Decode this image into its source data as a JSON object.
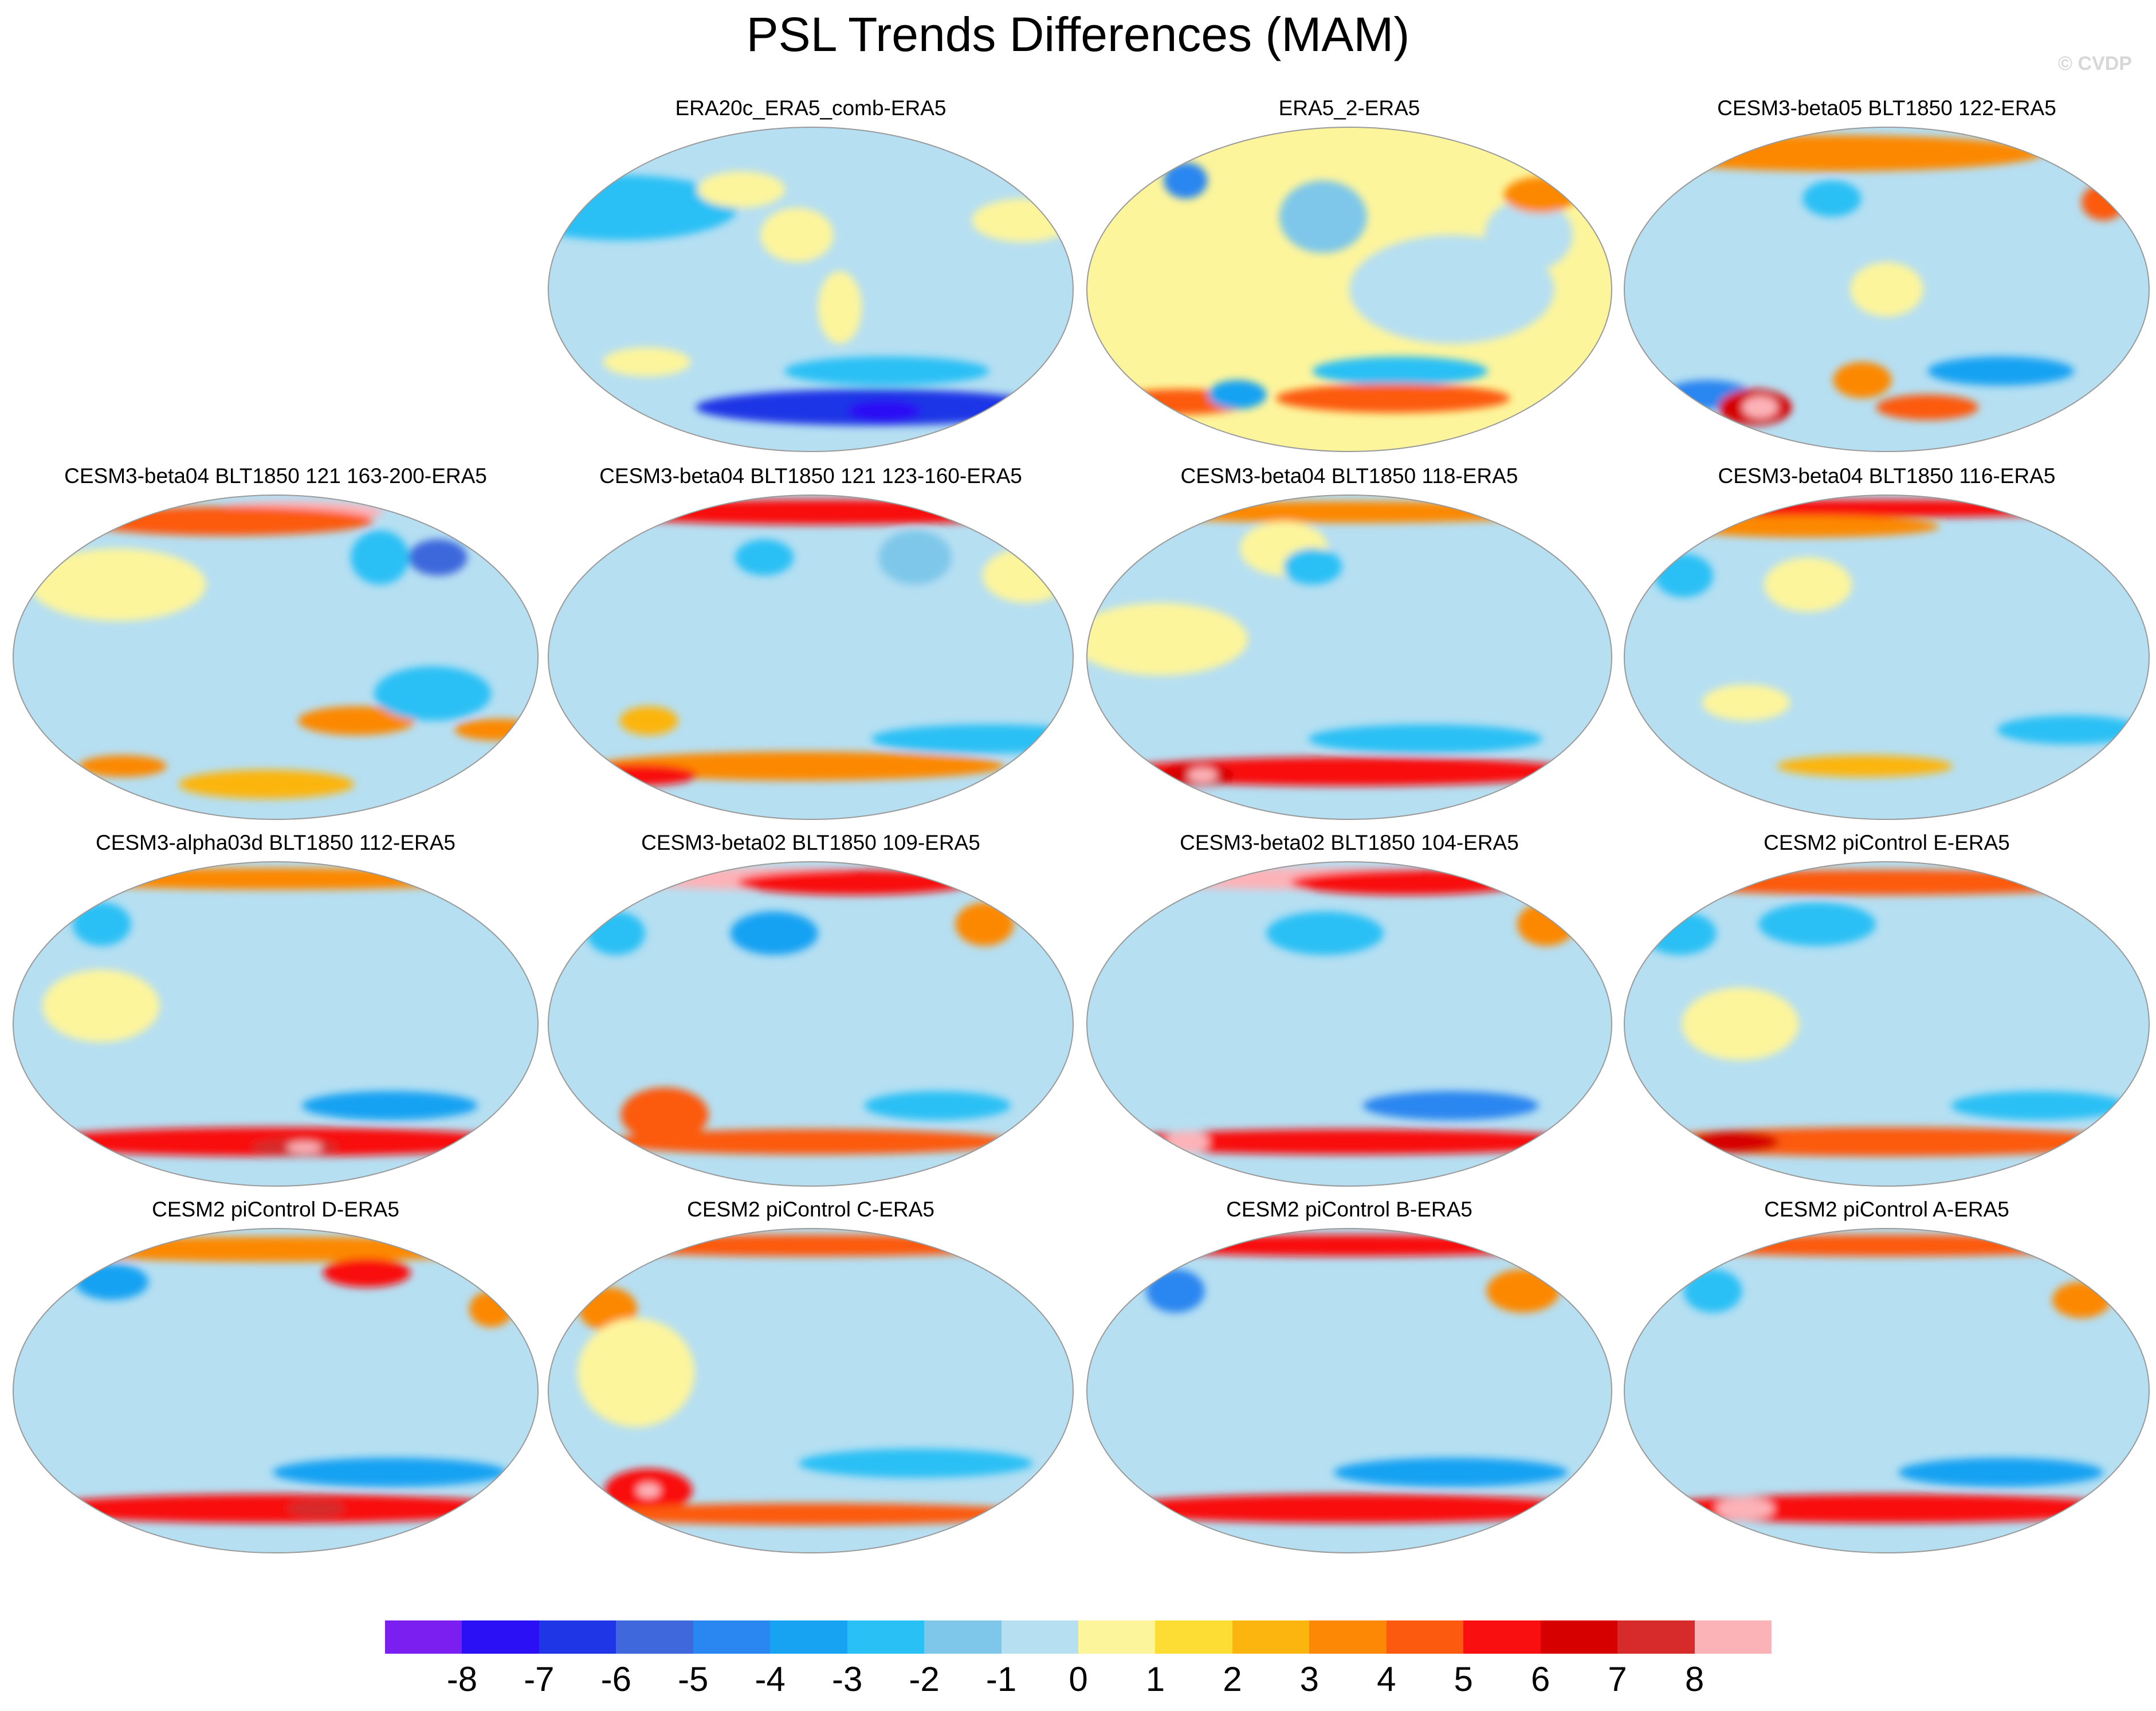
{
  "title": "PSL Trends Differences (MAM)",
  "watermark": "© CVDP",
  "palette": {
    "-9": "#7b1ff0",
    "-8": "#2b0ff5",
    "-7": "#1e36e6",
    "-6": "#3e68dc",
    "-5": "#2a86f0",
    "-4": "#17a2f2",
    "-3": "#29c0f5",
    "-2": "#7ec7ea",
    "-1": "#b6dff2",
    "0": "#fdf59c",
    "1": "#fddc34",
    "2": "#fcb50f",
    "3": "#fc8805",
    "4": "#fc5a0e",
    "5": "#f90f0f",
    "6": "#d60000",
    "7": "#d72b2b",
    "8": "#fcb3b8"
  },
  "colorbar": {
    "labels": [
      "-8",
      "-7",
      "-6",
      "-5",
      "-4",
      "-3",
      "-2",
      "-1",
      "0",
      "1",
      "2",
      "3",
      "4",
      "5",
      "6",
      "7",
      "8"
    ],
    "colors": [
      "#7b1ff0",
      "#2b0ff5",
      "#1e36e6",
      "#3e68dc",
      "#2a86f0",
      "#17a2f2",
      "#29c0f5",
      "#7ec7ea",
      "#b6dff2",
      "#fdf59c",
      "#fddc34",
      "#fcb50f",
      "#fc8805",
      "#fc5a0e",
      "#f90f0f",
      "#d60000",
      "#d72b2b",
      "#fcb3b8"
    ]
  },
  "panels": [
    {
      "title": "ERA20c_ERA5_comb-ERA5",
      "bg": -1,
      "blobs": [
        {
          "lon": -150,
          "lat": 45,
          "rx": 80,
          "ry": 18,
          "v": -3
        },
        {
          "lon": 160,
          "lat": 38,
          "rx": 35,
          "ry": 12,
          "v": 0
        },
        {
          "lon": -10,
          "lat": 30,
          "rx": 25,
          "ry": 15,
          "v": 0
        },
        {
          "lon": -60,
          "lat": 55,
          "rx": 30,
          "ry": 10,
          "v": 0
        },
        {
          "lon": 60,
          "lat": -45,
          "rx": 70,
          "ry": 8,
          "v": -3
        },
        {
          "lon": 60,
          "lat": -65,
          "rx": 120,
          "ry": 10,
          "v": -7
        },
        {
          "lon": 75,
          "lat": -67,
          "rx": 25,
          "ry": 6,
          "v": -8
        },
        {
          "lon": 20,
          "lat": -10,
          "rx": 15,
          "ry": 20,
          "v": 0
        },
        {
          "lon": -125,
          "lat": -40,
          "rx": 30,
          "ry": 8,
          "v": 0
        }
      ]
    },
    {
      "title": "ERA5_2-ERA5",
      "bg": 0,
      "blobs": [
        {
          "lon": 70,
          "lat": 0,
          "rx": 70,
          "ry": 30,
          "v": -1
        },
        {
          "lon": 130,
          "lat": 30,
          "rx": 30,
          "ry": 20,
          "v": -1
        },
        {
          "lon": 160,
          "lat": 52,
          "rx": 25,
          "ry": 10,
          "v": 3
        },
        {
          "lon": -150,
          "lat": 60,
          "rx": 15,
          "ry": 10,
          "v": -5
        },
        {
          "lon": -20,
          "lat": 40,
          "rx": 30,
          "ry": 20,
          "v": -2
        },
        {
          "lon": 40,
          "lat": -45,
          "rx": 60,
          "ry": 8,
          "v": -3
        },
        {
          "lon": 40,
          "lat": -60,
          "rx": 80,
          "ry": 8,
          "v": 4
        },
        {
          "lon": -160,
          "lat": -62,
          "rx": 50,
          "ry": 7,
          "v": 4
        },
        {
          "lon": -100,
          "lat": -58,
          "rx": 20,
          "ry": 8,
          "v": -4
        }
      ]
    },
    {
      "title": "CESM3-beta05 BLT1850 122-ERA5",
      "bg": -1,
      "blobs": [
        {
          "lon": -60,
          "lat": 75,
          "rx": 140,
          "ry": 10,
          "v": 3
        },
        {
          "lon": 175,
          "lat": 48,
          "rx": 15,
          "ry": 10,
          "v": 4
        },
        {
          "lon": -45,
          "lat": 50,
          "rx": 20,
          "ry": 10,
          "v": -3
        },
        {
          "lon": 90,
          "lat": -45,
          "rx": 50,
          "ry": 8,
          "v": -4
        },
        {
          "lon": -160,
          "lat": -58,
          "rx": 30,
          "ry": 8,
          "v": -5
        },
        {
          "lon": -130,
          "lat": -65,
          "rx": 25,
          "ry": 10,
          "v": 6
        },
        {
          "lon": -125,
          "lat": -65,
          "rx": 12,
          "ry": 6,
          "v": 8
        },
        {
          "lon": 40,
          "lat": -65,
          "rx": 35,
          "ry": 7,
          "v": 4
        },
        {
          "lon": -20,
          "lat": -50,
          "rx": 20,
          "ry": 10,
          "v": 3
        },
        {
          "lon": 0,
          "lat": 0,
          "rx": 25,
          "ry": 15,
          "v": 0
        }
      ]
    },
    {
      "title": "CESM3-beta04 BLT1850 121 163-200-ERA5",
      "bg": -1,
      "blobs": [
        {
          "lon": 30,
          "lat": 80,
          "rx": 60,
          "ry": 6,
          "v": 8
        },
        {
          "lon": -60,
          "lat": 75,
          "rx": 100,
          "ry": 8,
          "v": 4
        },
        {
          "lon": 140,
          "lat": 55,
          "rx": 20,
          "ry": 10,
          "v": -6
        },
        {
          "lon": 90,
          "lat": 55,
          "rx": 20,
          "ry": 15,
          "v": -3
        },
        {
          "lon": -120,
          "lat": 40,
          "rx": 60,
          "ry": 20,
          "v": 0
        },
        {
          "lon": 60,
          "lat": -35,
          "rx": 40,
          "ry": 8,
          "v": 3
        },
        {
          "lon": 170,
          "lat": -40,
          "rx": 30,
          "ry": 6,
          "v": 3
        },
        {
          "lon": 110,
          "lat": -20,
          "rx": 40,
          "ry": 15,
          "v": -3
        },
        {
          "lon": -140,
          "lat": -60,
          "rx": 30,
          "ry": 6,
          "v": 3
        },
        {
          "lon": -10,
          "lat": -70,
          "rx": 60,
          "ry": 8,
          "v": 2
        }
      ]
    },
    {
      "title": "CESM3-beta04 BLT1850 121 123-160-ERA5",
      "bg": -1,
      "blobs": [
        {
          "lon": 20,
          "lat": 80,
          "rx": 160,
          "ry": 7,
          "v": 5
        },
        {
          "lon": 170,
          "lat": 45,
          "rx": 30,
          "ry": 15,
          "v": 0
        },
        {
          "lon": -40,
          "lat": 55,
          "rx": 20,
          "ry": 10,
          "v": -3
        },
        {
          "lon": 140,
          "lat": -45,
          "rx": 80,
          "ry": 8,
          "v": -3
        },
        {
          "lon": -10,
          "lat": -60,
          "rx": 140,
          "ry": 8,
          "v": 3
        },
        {
          "lon": -170,
          "lat": -65,
          "rx": 40,
          "ry": 6,
          "v": 5
        },
        {
          "lon": -120,
          "lat": -35,
          "rx": 20,
          "ry": 8,
          "v": 2
        },
        {
          "lon": 90,
          "lat": 55,
          "rx": 25,
          "ry": 15,
          "v": -2
        }
      ]
    },
    {
      "title": "CESM3-beta04 BLT1850 118-ERA5",
      "bg": -1,
      "blobs": [
        {
          "lon": 0,
          "lat": 80,
          "rx": 150,
          "ry": 6,
          "v": 3
        },
        {
          "lon": -60,
          "lat": 60,
          "rx": 30,
          "ry": 15,
          "v": 0
        },
        {
          "lon": -30,
          "lat": 50,
          "rx": 20,
          "ry": 10,
          "v": -3
        },
        {
          "lon": -130,
          "lat": 10,
          "rx": 60,
          "ry": 20,
          "v": 0
        },
        {
          "lon": 60,
          "lat": -45,
          "rx": 80,
          "ry": 8,
          "v": -3
        },
        {
          "lon": 0,
          "lat": -63,
          "rx": 160,
          "ry": 8,
          "v": 5
        },
        {
          "lon": -150,
          "lat": -65,
          "rx": 25,
          "ry": 6,
          "v": 6
        },
        {
          "lon": -145,
          "lat": -65,
          "rx": 10,
          "ry": 4,
          "v": 8
        }
      ]
    },
    {
      "title": "CESM3-beta04 BLT1850 116-ERA5",
      "bg": -1,
      "blobs": [
        {
          "lon": 0,
          "lat": 82,
          "rx": 160,
          "ry": 5,
          "v": 5
        },
        {
          "lon": -90,
          "lat": 72,
          "rx": 90,
          "ry": 6,
          "v": 3
        },
        {
          "lon": -160,
          "lat": 45,
          "rx": 20,
          "ry": 12,
          "v": -3
        },
        {
          "lon": -60,
          "lat": 40,
          "rx": 30,
          "ry": 15,
          "v": 0
        },
        {
          "lon": 140,
          "lat": -40,
          "rx": 50,
          "ry": 8,
          "v": -3
        },
        {
          "lon": -100,
          "lat": -25,
          "rx": 30,
          "ry": 10,
          "v": 0
        },
        {
          "lon": -20,
          "lat": -60,
          "rx": 60,
          "ry": 6,
          "v": 2
        }
      ]
    },
    {
      "title": "CESM3-alpha03d BLT1850 112-ERA5",
      "bg": -1,
      "blobs": [
        {
          "lon": 0,
          "lat": 80,
          "rx": 160,
          "ry": 6,
          "v": 3
        },
        {
          "lon": -150,
          "lat": 55,
          "rx": 20,
          "ry": 12,
          "v": -3
        },
        {
          "lon": -120,
          "lat": 10,
          "rx": 40,
          "ry": 20,
          "v": 0
        },
        {
          "lon": 90,
          "lat": -45,
          "rx": 60,
          "ry": 8,
          "v": -4
        },
        {
          "lon": 0,
          "lat": -65,
          "rx": 170,
          "ry": 8,
          "v": 5
        },
        {
          "lon": 20,
          "lat": -68,
          "rx": 30,
          "ry": 5,
          "v": 7
        },
        {
          "lon": 30,
          "lat": -68,
          "rx": 12,
          "ry": 3,
          "v": 8
        }
      ]
    },
    {
      "title": "CESM3-beta02 BLT1850 109-ERA5",
      "bg": -1,
      "blobs": [
        {
          "lon": -60,
          "lat": 80,
          "rx": 110,
          "ry": 6,
          "v": 8
        },
        {
          "lon": 60,
          "lat": 78,
          "rx": 80,
          "ry": 7,
          "v": 5
        },
        {
          "lon": 150,
          "lat": 55,
          "rx": 20,
          "ry": 12,
          "v": 3
        },
        {
          "lon": -160,
          "lat": 50,
          "rx": 20,
          "ry": 12,
          "v": -3
        },
        {
          "lon": -30,
          "lat": 50,
          "rx": 30,
          "ry": 12,
          "v": -4
        },
        {
          "lon": 100,
          "lat": -45,
          "rx": 50,
          "ry": 8,
          "v": -3
        },
        {
          "lon": -120,
          "lat": -50,
          "rx": 30,
          "ry": 15,
          "v": 4
        },
        {
          "lon": 0,
          "lat": -65,
          "rx": 140,
          "ry": 7,
          "v": 4
        }
      ]
    },
    {
      "title": "CESM3-beta02 BLT1850 104-ERA5",
      "bg": -1,
      "blobs": [
        {
          "lon": -50,
          "lat": 80,
          "rx": 130,
          "ry": 6,
          "v": 8
        },
        {
          "lon": 80,
          "lat": 78,
          "rx": 80,
          "ry": 7,
          "v": 5
        },
        {
          "lon": 170,
          "lat": 55,
          "rx": 20,
          "ry": 12,
          "v": 3
        },
        {
          "lon": -20,
          "lat": 50,
          "rx": 40,
          "ry": 12,
          "v": -3
        },
        {
          "lon": 80,
          "lat": -45,
          "rx": 60,
          "ry": 8,
          "v": -5
        },
        {
          "lon": 0,
          "lat": -65,
          "rx": 170,
          "ry": 7,
          "v": 5
        },
        {
          "lon": -160,
          "lat": -65,
          "rx": 15,
          "ry": 6,
          "v": 8
        }
      ]
    },
    {
      "title": "CESM2 piControl E-ERA5",
      "bg": -1,
      "blobs": [
        {
          "lon": 0,
          "lat": 78,
          "rx": 160,
          "ry": 7,
          "v": 4
        },
        {
          "lon": -170,
          "lat": 50,
          "rx": 25,
          "ry": 12,
          "v": -3
        },
        {
          "lon": -60,
          "lat": 55,
          "rx": 40,
          "ry": 12,
          "v": -3
        },
        {
          "lon": -100,
          "lat": 0,
          "rx": 40,
          "ry": 20,
          "v": 0
        },
        {
          "lon": 120,
          "lat": -45,
          "rx": 60,
          "ry": 8,
          "v": -3
        },
        {
          "lon": 0,
          "lat": -65,
          "rx": 170,
          "ry": 8,
          "v": 4
        },
        {
          "lon": -150,
          "lat": -65,
          "rx": 30,
          "ry": 6,
          "v": 6
        }
      ]
    },
    {
      "title": "CESM2 piControl D-ERA5",
      "bg": -1,
      "blobs": [
        {
          "lon": 0,
          "lat": 78,
          "rx": 160,
          "ry": 7,
          "v": 3
        },
        {
          "lon": 90,
          "lat": 65,
          "rx": 30,
          "ry": 8,
          "v": 5
        },
        {
          "lon": -150,
          "lat": 60,
          "rx": 25,
          "ry": 10,
          "v": -4
        },
        {
          "lon": 170,
          "lat": 45,
          "rx": 15,
          "ry": 10,
          "v": 3
        },
        {
          "lon": 90,
          "lat": -45,
          "rx": 80,
          "ry": 8,
          "v": -4
        },
        {
          "lon": 0,
          "lat": -65,
          "rx": 170,
          "ry": 8,
          "v": 5
        },
        {
          "lon": 40,
          "lat": -65,
          "rx": 20,
          "ry": 5,
          "v": 7
        }
      ]
    },
    {
      "title": "CESM2 piControl C-ERA5",
      "bg": -1,
      "blobs": [
        {
          "lon": 0,
          "lat": 80,
          "rx": 160,
          "ry": 6,
          "v": 4
        },
        {
          "lon": -160,
          "lat": 45,
          "rx": 20,
          "ry": 12,
          "v": 3
        },
        {
          "lon": -120,
          "lat": 10,
          "rx": 40,
          "ry": 30,
          "v": 0
        },
        {
          "lon": 80,
          "lat": -40,
          "rx": 80,
          "ry": 8,
          "v": -3
        },
        {
          "lon": -140,
          "lat": -55,
          "rx": 30,
          "ry": 12,
          "v": 5
        },
        {
          "lon": -140,
          "lat": -55,
          "rx": 8,
          "ry": 4,
          "v": 8
        },
        {
          "lon": 0,
          "lat": -68,
          "rx": 160,
          "ry": 6,
          "v": 4
        }
      ]
    },
    {
      "title": "CESM2 piControl B-ERA5",
      "bg": -1,
      "blobs": [
        {
          "lon": 0,
          "lat": 80,
          "rx": 160,
          "ry": 6,
          "v": 5
        },
        {
          "lon": 150,
          "lat": 55,
          "rx": 25,
          "ry": 12,
          "v": 3
        },
        {
          "lon": -150,
          "lat": 55,
          "rx": 20,
          "ry": 12,
          "v": -5
        },
        {
          "lon": 80,
          "lat": -45,
          "rx": 80,
          "ry": 8,
          "v": -4
        },
        {
          "lon": 0,
          "lat": -65,
          "rx": 170,
          "ry": 8,
          "v": 5
        }
      ]
    },
    {
      "title": "CESM2 piControl A-ERA5",
      "bg": -1,
      "blobs": [
        {
          "lon": 0,
          "lat": 80,
          "rx": 160,
          "ry": 6,
          "v": 4
        },
        {
          "lon": 160,
          "lat": 50,
          "rx": 20,
          "ry": 10,
          "v": 3
        },
        {
          "lon": -150,
          "lat": 55,
          "rx": 20,
          "ry": 12,
          "v": -3
        },
        {
          "lon": 90,
          "lat": -45,
          "rx": 70,
          "ry": 8,
          "v": -4
        },
        {
          "lon": 0,
          "lat": -65,
          "rx": 170,
          "ry": 8,
          "v": 5
        },
        {
          "lon": -140,
          "lat": -65,
          "rx": 20,
          "ry": 6,
          "v": 8
        }
      ]
    }
  ]
}
